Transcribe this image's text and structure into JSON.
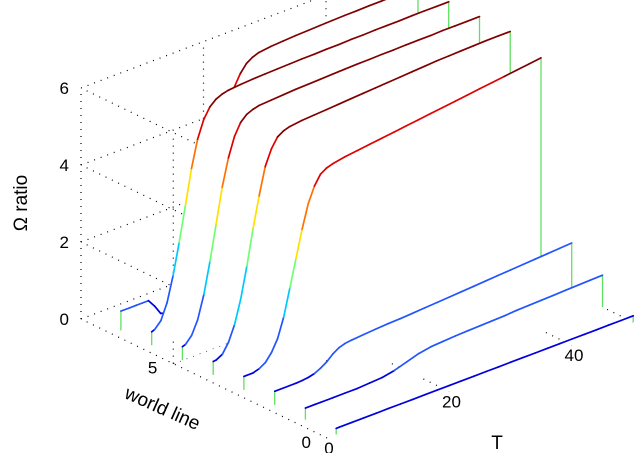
{
  "chart_data": {
    "type": "line",
    "projection": "3d-waterfall",
    "grid": true,
    "xlabel": "T",
    "ylabel": "world line",
    "zlabel": "Ω ratio",
    "xlim": [
      0,
      50
    ],
    "ylim": [
      0,
      8
    ],
    "zlim": [
      0,
      6
    ],
    "xticks": [
      0,
      20,
      40
    ],
    "yticks": [
      0,
      5
    ],
    "zticks": [
      0,
      2,
      4,
      6
    ],
    "colormap": [
      "#0000dd",
      "#2255ff",
      "#00c8ff",
      "#70ff70",
      "#ffe000",
      "#ff7000",
      "#e00000",
      "#800000"
    ],
    "wall_color": "#60e060",
    "series": [
      {
        "world_line": 0,
        "values": [
          [
            0,
            0
          ],
          [
            1,
            0
          ],
          [
            1.5,
            0.16
          ],
          [
            2,
            0.16
          ],
          [
            4,
            0.16
          ],
          [
            6,
            0.16
          ],
          [
            8,
            0.16
          ],
          [
            10,
            0.16
          ],
          [
            12,
            0.16
          ],
          [
            14,
            0.16
          ],
          [
            16,
            0.16
          ],
          [
            18,
            0.16
          ],
          [
            20,
            0.16
          ],
          [
            22,
            0.16
          ],
          [
            24,
            0.16
          ],
          [
            26,
            0.16
          ],
          [
            28,
            0.16
          ],
          [
            30,
            0.16
          ],
          [
            32,
            0.16
          ],
          [
            34,
            0.16
          ],
          [
            36,
            0.16
          ],
          [
            38,
            0.16
          ],
          [
            40,
            0.16
          ],
          [
            42,
            0.16
          ],
          [
            44,
            0.16
          ],
          [
            46,
            0.16
          ],
          [
            48,
            0.16
          ],
          [
            50,
            0.16
          ]
        ]
      },
      {
        "world_line": 1,
        "values": [
          [
            0,
            0
          ],
          [
            1,
            0
          ],
          [
            1.5,
            0.3
          ],
          [
            3,
            0.3
          ],
          [
            4,
            0.3
          ],
          [
            5,
            0.3
          ],
          [
            6,
            0.3
          ],
          [
            8,
            0.3
          ],
          [
            10,
            0.3
          ],
          [
            12,
            0.32
          ],
          [
            14,
            0.34
          ],
          [
            16,
            0.4
          ],
          [
            18,
            0.5
          ],
          [
            20,
            0.6
          ],
          [
            22,
            0.66
          ],
          [
            24,
            0.68
          ],
          [
            26,
            0.7
          ],
          [
            28,
            0.71
          ],
          [
            30,
            0.72
          ],
          [
            32,
            0.73
          ],
          [
            34,
            0.74
          ],
          [
            36,
            0.76
          ],
          [
            38,
            0.77
          ],
          [
            40,
            0.78
          ],
          [
            42,
            0.79
          ],
          [
            44,
            0.8
          ],
          [
            46,
            0.81
          ],
          [
            48,
            0.82
          ],
          [
            50,
            0.83
          ]
        ]
      },
      {
        "world_line": 2,
        "values": [
          [
            0,
            0
          ],
          [
            1,
            0
          ],
          [
            1.5,
            0.35
          ],
          [
            4,
            0.35
          ],
          [
            5,
            0.35
          ],
          [
            6,
            0.36
          ],
          [
            7,
            0.38
          ],
          [
            8,
            0.42
          ],
          [
            9,
            0.5
          ],
          [
            10,
            0.6
          ],
          [
            11,
            0.75
          ],
          [
            12,
            0.85
          ],
          [
            13,
            0.9
          ],
          [
            14,
            0.92
          ],
          [
            16,
            0.95
          ],
          [
            18,
            0.97
          ],
          [
            20,
            0.99
          ],
          [
            22,
            1.0
          ],
          [
            24,
            1.02
          ],
          [
            26,
            1.04
          ],
          [
            28,
            1.06
          ],
          [
            30,
            1.08
          ],
          [
            32,
            1.1
          ],
          [
            34,
            1.12
          ],
          [
            36,
            1.14
          ],
          [
            38,
            1.16
          ],
          [
            40,
            1.18
          ],
          [
            42,
            1.2
          ],
          [
            44,
            1.22
          ],
          [
            46,
            1.24
          ],
          [
            48,
            1.26
          ],
          [
            50,
            1.28
          ]
        ]
      },
      {
        "world_line": 3,
        "values": [
          [
            0,
            0
          ],
          [
            1,
            0
          ],
          [
            1.5,
            0.35
          ],
          [
            3,
            0.35
          ],
          [
            4,
            0.4
          ],
          [
            5,
            0.5
          ],
          [
            6,
            0.7
          ],
          [
            7,
            1.0
          ],
          [
            8,
            1.5
          ],
          [
            9,
            2.2
          ],
          [
            10,
            2.9
          ],
          [
            11,
            3.6
          ],
          [
            12,
            4.2
          ],
          [
            13,
            4.6
          ],
          [
            14,
            4.85
          ],
          [
            15,
            4.95
          ],
          [
            16,
            5.0
          ],
          [
            18,
            5.06
          ],
          [
            20,
            5.1
          ],
          [
            22,
            5.14
          ],
          [
            24,
            5.18
          ],
          [
            26,
            5.22
          ],
          [
            28,
            5.26
          ],
          [
            30,
            5.3
          ],
          [
            32,
            5.34
          ],
          [
            34,
            5.38
          ],
          [
            36,
            5.42
          ],
          [
            38,
            5.46
          ],
          [
            40,
            5.5
          ],
          [
            42,
            5.54
          ],
          [
            44,
            5.58
          ],
          [
            46,
            5.62
          ],
          [
            48,
            5.66
          ],
          [
            50,
            5.7
          ]
        ]
      },
      {
        "world_line": 4,
        "values": [
          [
            0,
            0
          ],
          [
            1,
            0
          ],
          [
            1.5,
            0.35
          ],
          [
            2,
            0.36
          ],
          [
            3,
            0.45
          ],
          [
            4,
            0.7
          ],
          [
            5,
            1.1
          ],
          [
            6,
            1.7
          ],
          [
            7,
            2.5
          ],
          [
            8,
            3.4
          ],
          [
            9,
            4.2
          ],
          [
            10,
            4.9
          ],
          [
            11,
            5.3
          ],
          [
            12,
            5.55
          ],
          [
            13,
            5.65
          ],
          [
            14,
            5.7
          ],
          [
            16,
            5.74
          ],
          [
            18,
            5.76
          ],
          [
            20,
            5.78
          ],
          [
            22,
            5.8
          ],
          [
            24,
            5.82
          ],
          [
            26,
            5.84
          ],
          [
            28,
            5.86
          ],
          [
            30,
            5.88
          ],
          [
            32,
            5.9
          ],
          [
            34,
            5.92
          ],
          [
            36,
            5.94
          ],
          [
            38,
            5.96
          ],
          [
            40,
            5.97
          ],
          [
            42,
            5.98
          ],
          [
            44,
            5.99
          ],
          [
            46,
            6.0
          ],
          [
            48,
            6.0
          ],
          [
            50,
            6.0
          ]
        ]
      },
      {
        "world_line": 5,
        "values": [
          [
            0,
            0
          ],
          [
            1,
            0
          ],
          [
            1.5,
            0.35
          ],
          [
            2,
            0.38
          ],
          [
            3,
            0.55
          ],
          [
            4,
            0.9
          ],
          [
            5,
            1.5
          ],
          [
            6,
            2.3
          ],
          [
            7,
            3.2
          ],
          [
            8,
            4.1
          ],
          [
            9,
            4.8
          ],
          [
            10,
            5.3
          ],
          [
            11,
            5.6
          ],
          [
            12,
            5.75
          ],
          [
            13,
            5.82
          ],
          [
            14,
            5.86
          ],
          [
            16,
            5.88
          ],
          [
            18,
            5.9
          ],
          [
            20,
            5.92
          ],
          [
            22,
            5.93
          ],
          [
            24,
            5.94
          ],
          [
            26,
            5.95
          ],
          [
            28,
            5.96
          ],
          [
            30,
            5.97
          ],
          [
            32,
            5.97
          ],
          [
            34,
            5.98
          ],
          [
            36,
            5.98
          ],
          [
            38,
            5.99
          ],
          [
            40,
            5.99
          ],
          [
            42,
            5.99
          ],
          [
            44,
            6.0
          ],
          [
            46,
            6.0
          ],
          [
            48,
            6.0
          ],
          [
            50,
            6.0
          ]
        ]
      },
      {
        "world_line": 6,
        "values": [
          [
            0,
            0
          ],
          [
            1,
            0
          ],
          [
            1.5,
            0.35
          ],
          [
            2,
            0.38
          ],
          [
            3,
            0.55
          ],
          [
            4,
            0.95
          ],
          [
            5,
            1.6
          ],
          [
            6,
            2.4
          ],
          [
            7,
            3.3
          ],
          [
            8,
            4.2
          ],
          [
            9,
            4.9
          ],
          [
            10,
            5.35
          ],
          [
            11,
            5.62
          ],
          [
            12,
            5.76
          ],
          [
            13,
            5.83
          ],
          [
            14,
            5.87
          ],
          [
            16,
            5.9
          ],
          [
            18,
            5.92
          ],
          [
            20,
            5.93
          ],
          [
            22,
            5.94
          ],
          [
            24,
            5.95
          ],
          [
            26,
            5.96
          ],
          [
            28,
            5.96
          ],
          [
            30,
            5.97
          ],
          [
            32,
            5.97
          ],
          [
            34,
            5.98
          ],
          [
            36,
            5.98
          ],
          [
            38,
            5.99
          ],
          [
            40,
            5.99
          ],
          [
            42,
            5.99
          ],
          [
            44,
            6.0
          ],
          [
            46,
            6.0
          ],
          [
            48,
            6.0
          ],
          [
            50,
            6.0
          ]
        ]
      },
      {
        "world_line": 7,
        "values": [
          [
            0,
            0
          ],
          [
            1,
            0
          ],
          [
            1.5,
            0.5
          ],
          [
            3,
            0.5
          ],
          [
            4,
            0.5
          ],
          [
            5,
            0.5
          ],
          [
            6,
            0.5
          ],
          [
            7,
            0.3
          ],
          [
            8,
            0.05
          ],
          [
            9,
            0.0
          ],
          [
            10,
            0.0
          ],
          [
            11,
            0.02
          ],
          [
            12,
            0.1
          ],
          [
            13,
            0.3
          ],
          [
            14,
            0.7
          ],
          [
            15,
            1.3
          ],
          [
            16,
            2.1
          ],
          [
            17,
            3.0
          ],
          [
            18,
            3.9
          ],
          [
            19,
            4.7
          ],
          [
            20,
            5.2
          ],
          [
            21,
            5.5
          ],
          [
            22,
            5.7
          ],
          [
            23,
            5.8
          ],
          [
            24,
            5.86
          ],
          [
            26,
            5.9
          ],
          [
            28,
            5.92
          ],
          [
            30,
            5.94
          ],
          [
            32,
            5.95
          ],
          [
            34,
            5.96
          ],
          [
            36,
            5.97
          ],
          [
            38,
            5.98
          ],
          [
            40,
            5.98
          ],
          [
            42,
            5.99
          ],
          [
            44,
            5.99
          ],
          [
            46,
            6.0
          ],
          [
            48,
            6.0
          ],
          [
            50,
            6.0
          ]
        ]
      }
    ]
  }
}
